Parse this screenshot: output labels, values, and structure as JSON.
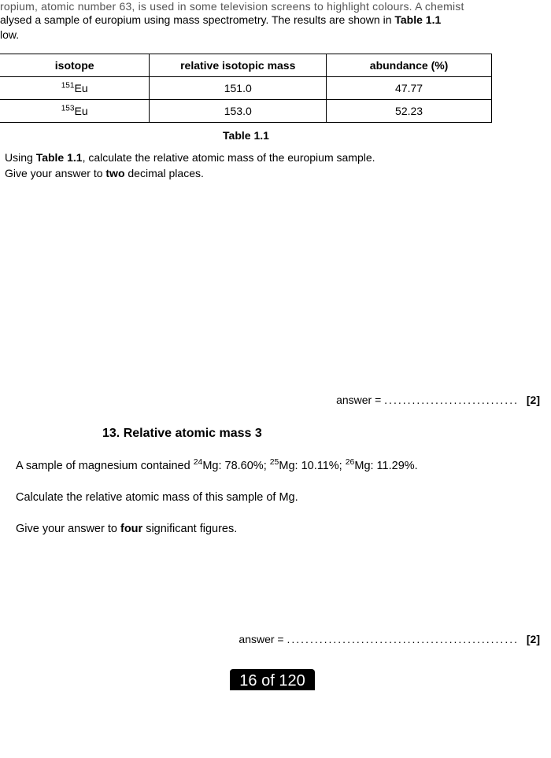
{
  "intro": {
    "cutoff_line": "ropium, atomic number 63, is used in some television screens to highlight colours. A chemist",
    "line2": "alysed a sample of europium using mass spectrometry. The results are shown in ",
    "bold_ref": "Table 1.1",
    "line3": "low."
  },
  "table": {
    "headers": [
      "isotope",
      "relative isotopic mass",
      "abundance (%)"
    ],
    "rows": [
      {
        "iso_sup": "151",
        "iso_sym": "Eu",
        "mass": "151.0",
        "abund": "47.77"
      },
      {
        "iso_sup": "153",
        "iso_sym": "Eu",
        "mass": "153.0",
        "abund": "52.23"
      }
    ],
    "caption": "Table 1.1",
    "col_widths": [
      "190px",
      "225px",
      "210px"
    ]
  },
  "q12": {
    "line1a": "Using ",
    "line1b_bold": "Table 1.1",
    "line1c": ", calculate the relative atomic mass of the europium sample.",
    "line2a": "Give your answer to ",
    "line2b_bold": "two",
    "line2c": " decimal places.",
    "answer_label": "answer = ",
    "dots": ".............................",
    "marks": "[2]"
  },
  "section13": {
    "heading": "13. Relative atomic mass 3"
  },
  "q13": {
    "line1a": "A sample of magnesium contained ",
    "iso1_sup": "24",
    "iso1": "Mg: 78.60%; ",
    "iso2_sup": "25",
    "iso2": "Mg: 10.11%; ",
    "iso3_sup": "26",
    "iso3": "Mg: 11.29%.",
    "line2": "Calculate the relative atomic mass of this sample of Mg.",
    "line3a": "Give your answer to ",
    "line3b_bold": "four",
    "line3c": " significant figures.",
    "answer_label": "answer = ",
    "dots": "..................................................",
    "marks": "[2]"
  },
  "page_counter": "16 of 120"
}
